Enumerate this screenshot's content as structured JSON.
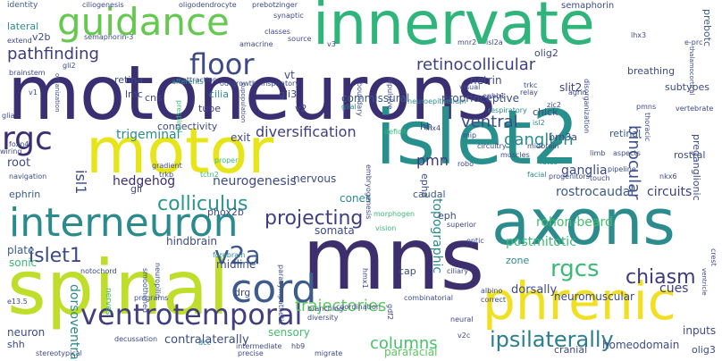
{
  "words": [
    {
      "text": "motoneurons",
      "color": "#3b2f73"
    },
    {
      "text": "motor",
      "color": "#e7e419"
    },
    {
      "text": "islet2",
      "color": "#27908c"
    },
    {
      "text": "innervate",
      "color": "#2fb47c"
    },
    {
      "text": "spinal",
      "color": "#bfde2b"
    },
    {
      "text": "mns",
      "color": "#3d2e6e"
    },
    {
      "text": "axons",
      "color": "#2c8c8d"
    },
    {
      "text": "guidance",
      "color": "#65c84f"
    },
    {
      "text": "phrenic",
      "color": "#f0e021"
    },
    {
      "text": "interneuron",
      "color": "#2b8a8c"
    },
    {
      "text": "cord",
      "color": "#3d5b8b"
    },
    {
      "text": "ventrotemporal",
      "color": "#433e80"
    },
    {
      "text": "rgc",
      "color": "#3b2f73"
    },
    {
      "text": "floor",
      "color": "#3e4a88"
    },
    {
      "text": "v2a",
      "color": "#3e5a8d"
    },
    {
      "text": "rgcs",
      "color": "#3cb879"
    },
    {
      "text": "ipsilaterally",
      "color": "#2b7f8d"
    },
    {
      "text": "projecting",
      "color": "#3e3f82"
    },
    {
      "text": "colliculus",
      "color": "#28968b"
    },
    {
      "text": "islet1",
      "color": "#3e4a88"
    },
    {
      "text": "chiasm",
      "color": "#3d3a7d"
    },
    {
      "text": "ganglion",
      "color": "#2c8c8d"
    },
    {
      "text": "ventral",
      "color": "#3d4b87"
    },
    {
      "text": "pathfinding",
      "color": "#3d3c7f"
    },
    {
      "text": "binocular",
      "color": "#3d4f8b"
    },
    {
      "text": "trajectories",
      "color": "#5bc560"
    },
    {
      "text": "columns",
      "color": "#4bbf6b"
    },
    {
      "text": "retinocollicular",
      "color": "#3e3f82"
    },
    {
      "text": "diversification",
      "color": "#3e3f82"
    },
    {
      "text": "pmn",
      "color": "#3d3a7d"
    },
    {
      "text": "hedgehog",
      "color": "#3b2f73"
    },
    {
      "text": "neurogenesis",
      "color": "#3e4a88"
    },
    {
      "text": "postmitotic",
      "color": "#3cb879"
    },
    {
      "text": "rohon-beard",
      "color": "#45bd6e"
    },
    {
      "text": "rostrocaudal",
      "color": "#3d5a8a"
    },
    {
      "text": "circuits",
      "color": "#3e3f82"
    },
    {
      "text": "ganglia",
      "color": "#3e4a88"
    },
    {
      "text": "topographic",
      "color": "#2c8c8d"
    },
    {
      "text": "isl1",
      "color": "#3d4b87"
    },
    {
      "text": "dorsally",
      "color": "#3e4a88"
    },
    {
      "text": "contralaterally",
      "color": "#3d4b87"
    },
    {
      "text": "parafacial",
      "color": "#5bc560"
    },
    {
      "text": "neuromuscular",
      "color": "#3d4b87"
    },
    {
      "text": "cues",
      "color": "#3e3f82"
    },
    {
      "text": "inputs",
      "color": "#3e4a88"
    },
    {
      "text": "homeodomain",
      "color": "#3d4b87"
    },
    {
      "text": "cranial",
      "color": "#3e4a88"
    },
    {
      "text": "olig3",
      "color": "#3d4b87"
    },
    {
      "text": "dorsoventral",
      "color": "#2c8c8d"
    },
    {
      "text": "neuron",
      "color": "#3e4a88"
    },
    {
      "text": "shh",
      "color": "#3e4a88"
    },
    {
      "text": "sonic",
      "color": "#3cb879"
    },
    {
      "text": "plate",
      "color": "#3d5a8a"
    },
    {
      "text": "root",
      "color": "#3e4a88"
    },
    {
      "text": "ephrin",
      "color": "#3d5a8a"
    },
    {
      "text": "trigeminal",
      "color": "#2c8c8d"
    },
    {
      "text": "midline",
      "color": "#3d4b87"
    },
    {
      "text": "hindbrain",
      "color": "#3e4a88"
    },
    {
      "text": "somata",
      "color": "#3d4b87"
    },
    {
      "text": "cones",
      "color": "#2c8c8d"
    },
    {
      "text": "nervous",
      "color": "#3e4a88"
    },
    {
      "text": "commissural",
      "color": "#3d5a8a"
    },
    {
      "text": "proprioceptive",
      "color": "#3d4b87"
    },
    {
      "text": "slit2",
      "color": "#3e3f82"
    },
    {
      "text": "netrin",
      "color": "#3e4a88"
    },
    {
      "text": "semaphorin",
      "color": "#3d4b87"
    },
    {
      "text": "breathing",
      "color": "#3d4b87"
    },
    {
      "text": "olig2",
      "color": "#3d4b87"
    },
    {
      "text": "v2b",
      "color": "#3e4a88"
    },
    {
      "text": "lateral",
      "color": "#2c8c8d"
    },
    {
      "text": "retina",
      "color": "#3e4a88"
    },
    {
      "text": "lmc",
      "color": "#3e4a88"
    },
    {
      "text": "vt",
      "color": "#3d4b87"
    },
    {
      "text": "gli3",
      "color": "#3d4b87"
    },
    {
      "text": "cns",
      "color": "#3e4a88"
    },
    {
      "text": "cilia",
      "color": "#2c8c8d"
    },
    {
      "text": "tube",
      "color": "#3e3f82"
    },
    {
      "text": "v2",
      "color": "#3d4b87"
    },
    {
      "text": "exit",
      "color": "#3e4a88"
    },
    {
      "text": "hh",
      "color": "#3e4a88"
    },
    {
      "text": "chick",
      "color": "#3d4b87"
    },
    {
      "text": "brn3a",
      "color": "#3d4b87"
    },
    {
      "text": "retinal",
      "color": "#3d5a8a"
    },
    {
      "text": "connectivity",
      "color": "#3e4a88"
    },
    {
      "text": "eph",
      "color": "#3d4b87"
    },
    {
      "text": "epha",
      "color": "#3d4b87"
    },
    {
      "text": "gli",
      "color": "#3e4a88"
    },
    {
      "text": "caudal",
      "color": "#3d5a8a"
    },
    {
      "text": "drg",
      "color": "#3e4a88"
    },
    {
      "text": "cap",
      "color": "#3d4b87"
    },
    {
      "text": "zone",
      "color": "#2c8c8d"
    },
    {
      "text": "sensory",
      "color": "#45bd6e"
    },
    {
      "text": "subtypes",
      "color": "#3d4b87"
    },
    {
      "text": "prebotc",
      "color": "#3d5a8a"
    },
    {
      "text": "preganglionic",
      "color": "#3d4b87"
    },
    {
      "text": "rostral",
      "color": "#3d4b87"
    },
    {
      "text": "phox2b",
      "color": "#3e4a88"
    },
    {
      "text": "identity",
      "color": "#3d5a8a"
    },
    {
      "text": "ciliogenesis",
      "color": "#3e4a88"
    },
    {
      "text": "oligodendrocyte",
      "color": "#3d4b87"
    },
    {
      "text": "prebotzinger",
      "color": "#3d4b87"
    },
    {
      "text": "synaptic",
      "color": "#3d4b87"
    },
    {
      "text": "extend",
      "color": "#3e4a88"
    },
    {
      "text": "brainstem",
      "color": "#3d4b87"
    },
    {
      "text": "gli2",
      "color": "#3d4b87"
    },
    {
      "text": "attraction",
      "color": "#3d4b87"
    },
    {
      "text": "outgrowth",
      "color": "#3d4b87"
    },
    {
      "text": "inspiratory",
      "color": "#3d4b87"
    },
    {
      "text": "afferents",
      "color": "#2c8c8d"
    },
    {
      "text": "source",
      "color": "#3e4a88"
    },
    {
      "text": "amacrine",
      "color": "#3d4b87"
    },
    {
      "text": "v3",
      "color": "#3e4a88"
    },
    {
      "text": "mnr2",
      "color": "#3e4a88"
    },
    {
      "text": "isl2a",
      "color": "#3d4b87"
    },
    {
      "text": "lhx3",
      "color": "#3d4b87"
    },
    {
      "text": "e-prc",
      "color": "#3d4b87"
    },
    {
      "text": "thalamocortical",
      "color": "#3d4b87"
    },
    {
      "text": "vertebrate",
      "color": "#3d4b87"
    },
    {
      "text": "trkc",
      "color": "#3d4b87"
    },
    {
      "text": "relay",
      "color": "#3e4a88"
    },
    {
      "text": "agrin",
      "color": "#3d4b87"
    },
    {
      "text": "zic2",
      "color": "#3d4b87"
    },
    {
      "text": "ephb1",
      "color": "#3e4a88"
    },
    {
      "text": "respiratory",
      "color": "#2c8c8d"
    },
    {
      "text": "visual",
      "color": "#3d4b87"
    },
    {
      "text": "boundary",
      "color": "#3d4b87"
    },
    {
      "text": "neuroepithelium",
      "color": "#2c8c8d"
    },
    {
      "text": "repulsive",
      "color": "#3d4b87"
    },
    {
      "text": "organization",
      "color": "#3d4b87"
    },
    {
      "text": "prespinal",
      "color": "#3cb879"
    },
    {
      "text": "supopulation",
      "color": "#3d4b87"
    },
    {
      "text": "glial",
      "color": "#2c8c8d"
    },
    {
      "text": "disorganization",
      "color": "#3d4b87"
    },
    {
      "text": "pmns",
      "color": "#3e4a88"
    },
    {
      "text": "thoracic",
      "color": "#3d4b87"
    },
    {
      "text": "lhx4",
      "color": "#3d4b87"
    },
    {
      "text": "deficit",
      "color": "#3cb879"
    },
    {
      "text": "mip",
      "color": "#3e4a88"
    },
    {
      "text": "circuitry",
      "color": "#3d4b87"
    },
    {
      "text": "midbrain",
      "color": "#3d4b87"
    },
    {
      "text": "muscles",
      "color": "#3d4b87"
    },
    {
      "text": "limb",
      "color": "#3e4a88"
    },
    {
      "text": "aspects",
      "color": "#3d4b87"
    },
    {
      "text": "fates",
      "color": "#2c8c8d"
    },
    {
      "text": "facial",
      "color": "#2c8c8d"
    },
    {
      "text": "progenitors",
      "color": "#3d4b87"
    },
    {
      "text": "pipeline",
      "color": "#3d4b87"
    },
    {
      "text": "touch",
      "color": "#3e4a88"
    },
    {
      "text": "nkx6",
      "color": "#3d4b87"
    },
    {
      "text": "foxn4",
      "color": "#3d4b87"
    },
    {
      "text": "wiring",
      "color": "#3d4b87"
    },
    {
      "text": "navigation",
      "color": "#3d4b87"
    },
    {
      "text": "gradient",
      "color": "#3d4b87"
    },
    {
      "text": "trkb",
      "color": "#3d4b87"
    },
    {
      "text": "tctn2",
      "color": "#3cb879"
    },
    {
      "text": "proper",
      "color": "#3cb879"
    },
    {
      "text": "embryogenesis",
      "color": "#3d4b87"
    },
    {
      "text": "morphogen",
      "color": "#3cb879"
    },
    {
      "text": "robo",
      "color": "#3e4a88"
    },
    {
      "text": "superior",
      "color": "#3e4a88"
    },
    {
      "text": "vision",
      "color": "#3cb879"
    },
    {
      "text": "optic",
      "color": "#3d4b87"
    },
    {
      "text": "ciliary",
      "color": "#3d4b87"
    },
    {
      "text": "albino",
      "color": "#3d4b87"
    },
    {
      "text": "correct",
      "color": "#3d4b87"
    },
    {
      "text": "neural",
      "color": "#3e4a88"
    },
    {
      "text": "v2c",
      "color": "#3d4b87"
    },
    {
      "text": "combinatorial",
      "color": "#3d4b87"
    },
    {
      "text": "branching",
      "color": "#3d4b87"
    },
    {
      "text": "diversity",
      "color": "#3d4b87"
    },
    {
      "text": "coordination",
      "color": "#3d4b87"
    },
    {
      "text": "parasympathetic",
      "color": "#3d4b87"
    },
    {
      "text": "notochord",
      "color": "#3d4b87"
    },
    {
      "text": "programs",
      "color": "#3d4b87"
    },
    {
      "text": "forebrain",
      "color": "#2c8c8d"
    },
    {
      "text": "smoothened",
      "color": "#3d4b87"
    },
    {
      "text": "nerves",
      "color": "#3cb879"
    },
    {
      "text": "neuropilin",
      "color": "#3d4b87"
    },
    {
      "text": "e13.5",
      "color": "#3d4b87"
    },
    {
      "text": "decussation",
      "color": "#3d4b87"
    },
    {
      "text": "dcc",
      "color": "#2c8c8d"
    },
    {
      "text": "intermediate",
      "color": "#3d4b87"
    },
    {
      "text": "hb9",
      "color": "#3d4b87"
    },
    {
      "text": "precise",
      "color": "#3d4b87"
    },
    {
      "text": "migrate",
      "color": "#3d4b87"
    },
    {
      "text": "stereotypical",
      "color": "#3d4b87"
    },
    {
      "text": "crest",
      "color": "#3d4b87"
    },
    {
      "text": "ventricle",
      "color": "#3d4b87"
    },
    {
      "text": "gdf2",
      "color": "#3d4b87"
    },
    {
      "text": "semaphorin-3",
      "color": "#3d4b87"
    },
    {
      "text": "classes",
      "color": "#3d4b87"
    },
    {
      "text": "isl2",
      "color": "#2c8c8d"
    },
    {
      "text": "hmx1",
      "color": "#3d4b87"
    },
    {
      "text": "glia",
      "color": "#3d4b87"
    },
    {
      "text": "v1",
      "color": "#3d4b87"
    }
  ]
}
